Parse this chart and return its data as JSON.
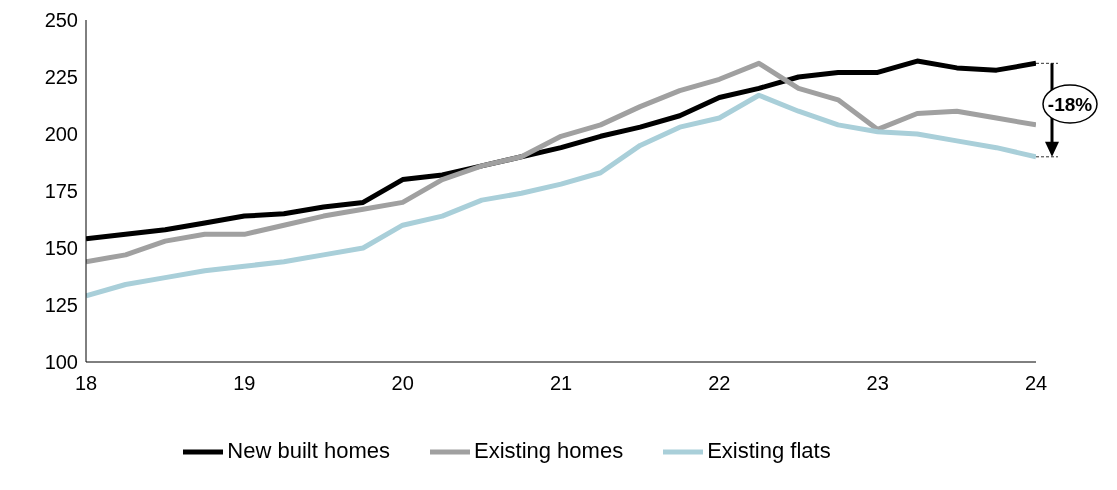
{
  "chart_data": {
    "type": "line",
    "x": [
      18,
      18.25,
      18.5,
      18.75,
      19,
      19.25,
      19.5,
      19.75,
      20,
      20.25,
      20.5,
      20.75,
      21,
      21.25,
      21.5,
      21.75,
      22,
      22.25,
      22.5,
      22.75,
      23,
      23.25,
      23.5,
      23.75,
      24
    ],
    "series": [
      {
        "name": "New built homes",
        "color": "#000000",
        "values": [
          154,
          156,
          158,
          161,
          164,
          165,
          168,
          170,
          180,
          182,
          186,
          190,
          194,
          199,
          203,
          208,
          216,
          220,
          225,
          227,
          227,
          232,
          229,
          228,
          231
        ]
      },
      {
        "name": "Existing homes",
        "color": "#a0a0a0",
        "values": [
          144,
          147,
          153,
          156,
          156,
          160,
          164,
          167,
          170,
          180,
          186,
          190,
          199,
          204,
          212,
          219,
          224,
          231,
          220,
          215,
          202,
          209,
          210,
          207,
          204
        ]
      },
      {
        "name": "Existing flats",
        "color": "#a9cfd9",
        "values": [
          129,
          134,
          137,
          140,
          142,
          144,
          147,
          150,
          160,
          164,
          171,
          174,
          178,
          183,
          195,
          203,
          207,
          217,
          210,
          204,
          201,
          200,
          197,
          194,
          190
        ]
      }
    ],
    "xlim": [
      18,
      24
    ],
    "xticks": [
      18,
      19,
      20,
      21,
      22,
      23,
      24
    ],
    "ylim": [
      100,
      250
    ],
    "yticks": [
      100,
      125,
      150,
      175,
      200,
      225,
      250
    ],
    "annotations": [
      "-18%"
    ],
    "grid": false,
    "legend": "bottom",
    "marker": "none",
    "line_style": "solid"
  }
}
